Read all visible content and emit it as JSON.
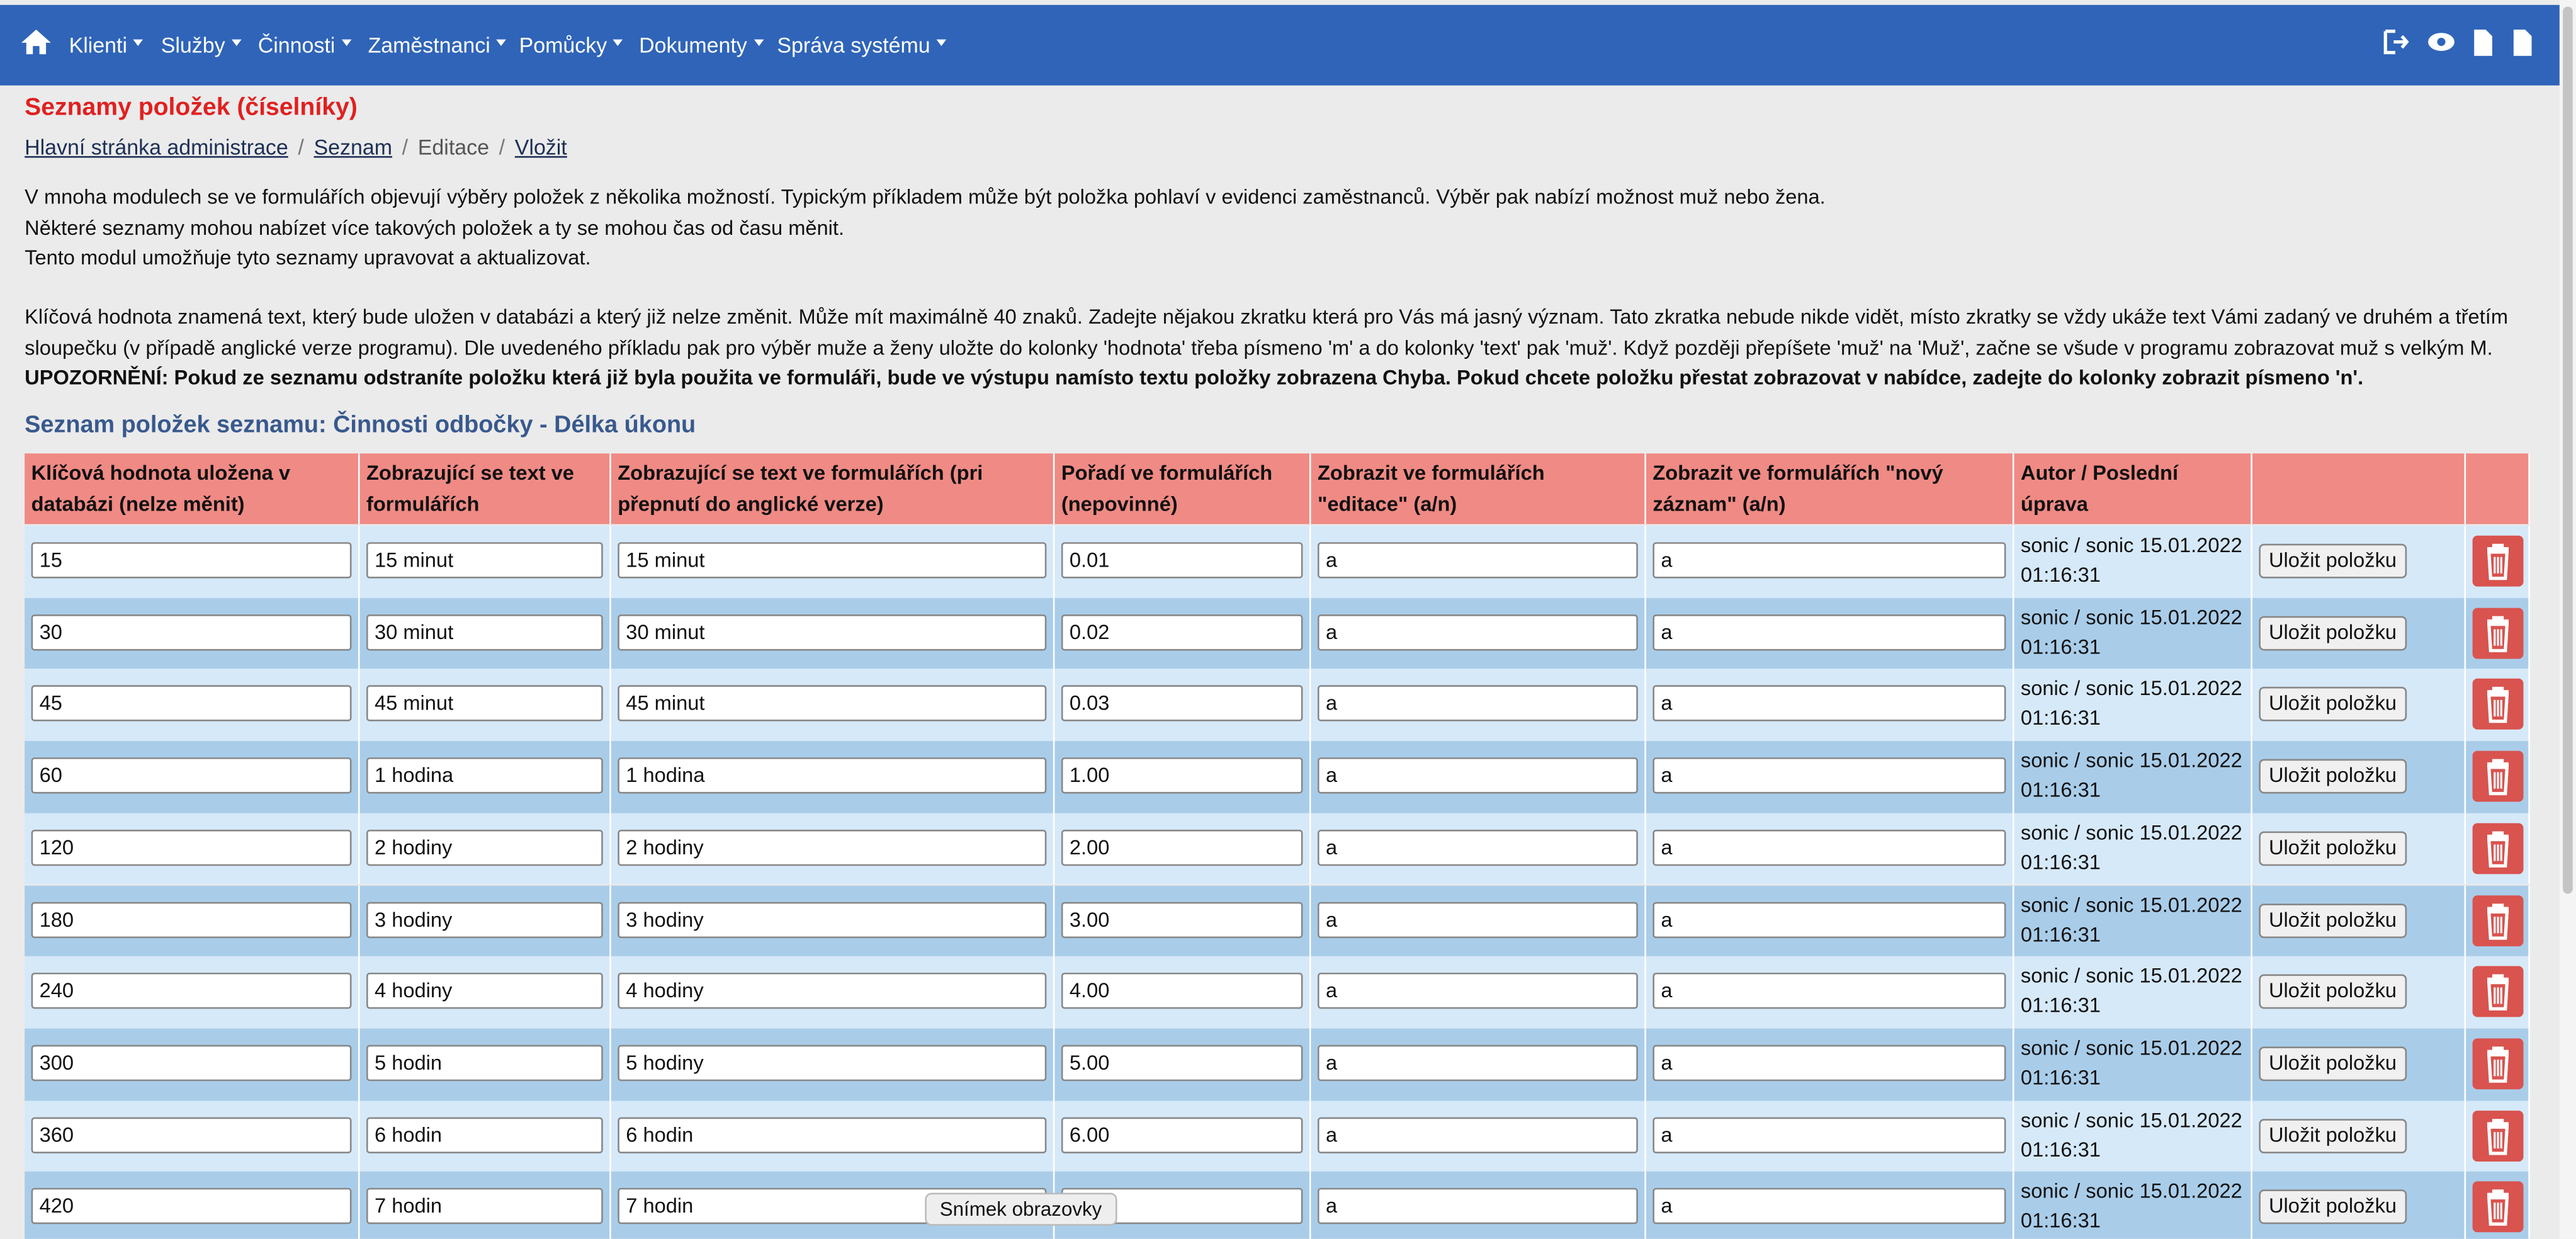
{
  "nav": {
    "items": [
      "Klienti",
      "Služby",
      "Činnosti",
      "Zaměstnanci",
      "Pomůcky",
      "Dokumenty",
      "Správa systému"
    ]
  },
  "header": {
    "title": "Seznamy položek (číselníky)"
  },
  "breadcrumb": {
    "items": [
      "Hlavní stránka administrace",
      "Seznam",
      "Editace",
      "Vložit"
    ]
  },
  "intro": [
    "V mnoha modulech se ve formulářích objevují výběry položek z několika možností. Typickým příkladem může být položka pohlaví v evidenci zaměstnanců. Výběr pak nabízí možnost muž nebo žena.",
    "Některé seznamy mohou nabízet více takových položek a ty se mohou čas od času měnit.",
    "Tento modul umožňuje tyto seznamy upravovat a aktualizovat."
  ],
  "note": "Klíčová hodnota znamená text, který bude uložen v databázi a který již nelze změnit. Může mít maximálně 40 znaků. Zadejte nějakou zkratku která pro Vás má jasný význam. Tato zkratka nebude nikde vidět, místo zkratky se vždy ukáže text Vámi zadaný ve druhém a třetím sloupečku (v případě anglické verze programu). Dle uvedeného příkladu pak pro výběr muže a ženy uložte do kolonky 'hodnota' třeba písmeno 'm' a do kolonky 'text' pak 'muž'. Když později přepíšete 'muž' na 'Muž', začne se všude v programu zobrazovat muž s velkým M.",
  "warning": "UPOZORNĚNÍ: Pokud ze seznamu odstraníte položku která již byla použita ve formuláři, bude ve výstupu namísto textu položky zobrazena Chyba. Pokud chcete položku přestat zobrazovat v nabídce, zadejte do kolonky zobrazit písmeno 'n'.",
  "table": {
    "title": "Seznam položek seznamu: Činnosti odbočky - Délka úkonu",
    "columns": [
      "Klíčová hodnota uložena v databázi (nelze měnit)",
      "Zobrazující se text ve formulářích",
      "Zobrazující se text ve formulářích (pri přepnutí do anglické verze)",
      "Pořadí ve formulářích (nepovinné)",
      "Zobrazit ve formulářích \"editace\" (a/n)",
      "Zobrazit ve formulářích \"nový záznam\" (a/n)",
      "Autor / Poslední úprava"
    ],
    "save_label": "Uložit položku",
    "rows": [
      [
        "15",
        "15 minut",
        "15 minut",
        "0.01",
        "a",
        "a",
        "sonic / sonic 15.01.2022 01:16:31"
      ],
      [
        "30",
        "30 minut",
        "30 minut",
        "0.02",
        "a",
        "a",
        "sonic / sonic 15.01.2022 01:16:31"
      ],
      [
        "45",
        "45 minut",
        "45 minut",
        "0.03",
        "a",
        "a",
        "sonic / sonic 15.01.2022 01:16:31"
      ],
      [
        "60",
        "1 hodina",
        "1 hodina",
        "1.00",
        "a",
        "a",
        "sonic / sonic 15.01.2022 01:16:31"
      ],
      [
        "120",
        "2 hodiny",
        "2 hodiny",
        "2.00",
        "a",
        "a",
        "sonic / sonic 15.01.2022 01:16:31"
      ],
      [
        "180",
        "3 hodiny",
        "3 hodiny",
        "3.00",
        "a",
        "a",
        "sonic / sonic 15.01.2022 01:16:31"
      ],
      [
        "240",
        "4 hodiny",
        "4 hodiny",
        "4.00",
        "a",
        "a",
        "sonic / sonic 15.01.2022 01:16:31"
      ],
      [
        "300",
        "5 hodin",
        "5 hodiny",
        "5.00",
        "a",
        "a",
        "sonic / sonic 15.01.2022 01:16:31"
      ],
      [
        "360",
        "6 hodin",
        "6 hodin",
        "6.00",
        "a",
        "a",
        "sonic / sonic 15.01.2022 01:16:31"
      ],
      [
        "420",
        "7 hodin",
        "7 hodin",
        null,
        "a",
        "a",
        "sonic / sonic 15.01.2022 01:16:31"
      ]
    ]
  },
  "tooltip": "Snímek obrazovky"
}
